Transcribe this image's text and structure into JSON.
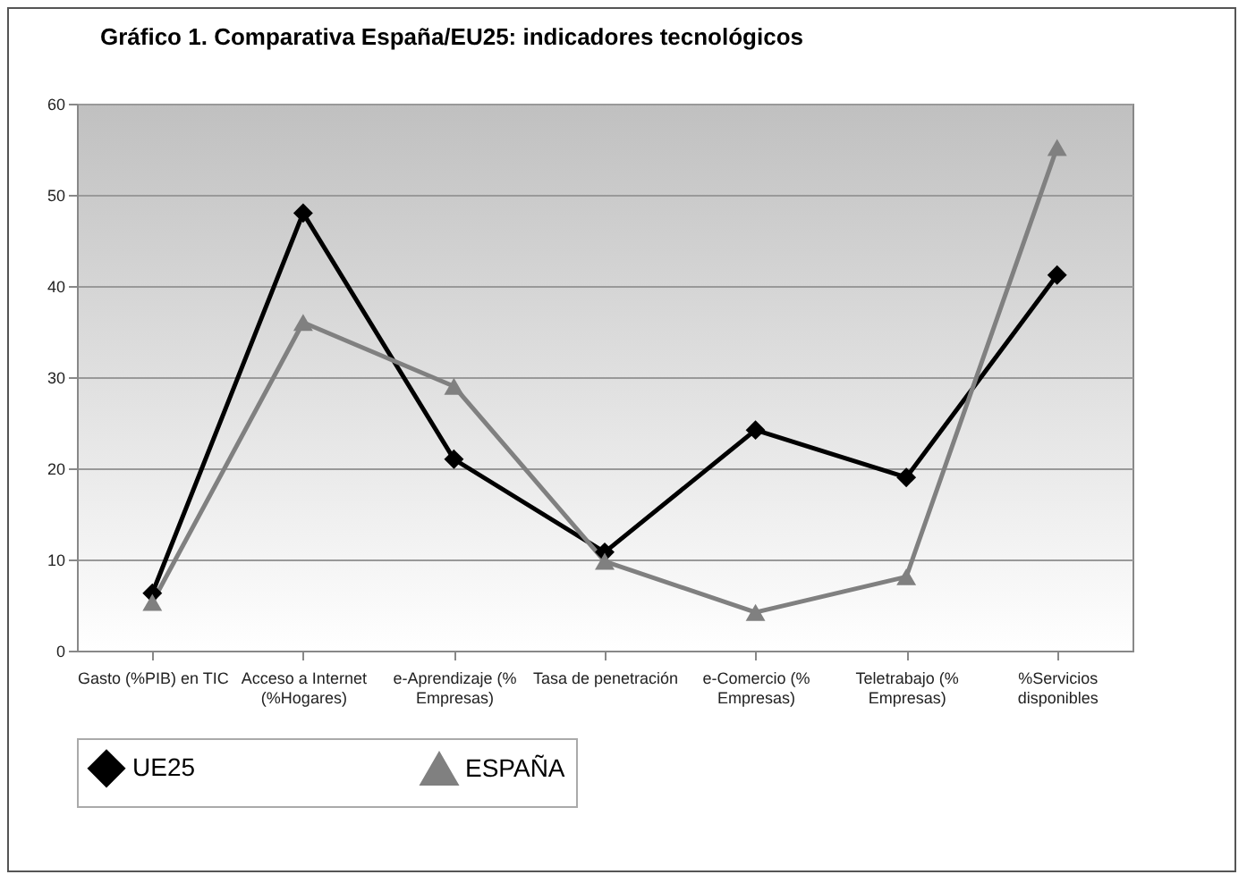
{
  "chart_data": {
    "type": "line",
    "title": "Gráfico 1. Comparativa España/EU25: indicadores tecnológicos",
    "categories": [
      "Gasto (%PIB) en TIC",
      "Acceso a Internet (%Hogares)",
      "e-Aprendizaje (% Empresas)",
      "Tasa de penetración",
      "e-Comercio (% Empresas)",
      "Teletrabajo (% Empresas)",
      "%Servicios disponibles"
    ],
    "series": [
      {
        "name": "UE25",
        "color": "#000000",
        "marker": "diamond",
        "values": [
          6.3,
          48,
          21,
          10.8,
          24.2,
          19,
          41.2
        ]
      },
      {
        "name": "ESPAÑA",
        "color": "#808080",
        "marker": "triangle",
        "values": [
          5.3,
          36,
          29,
          9.8,
          4.2,
          8.1,
          55.2
        ]
      }
    ],
    "ylim": [
      0,
      60
    ],
    "yticks": [
      0,
      10,
      20,
      30,
      40,
      50,
      60
    ],
    "grid": "y",
    "legend": "bottom"
  }
}
